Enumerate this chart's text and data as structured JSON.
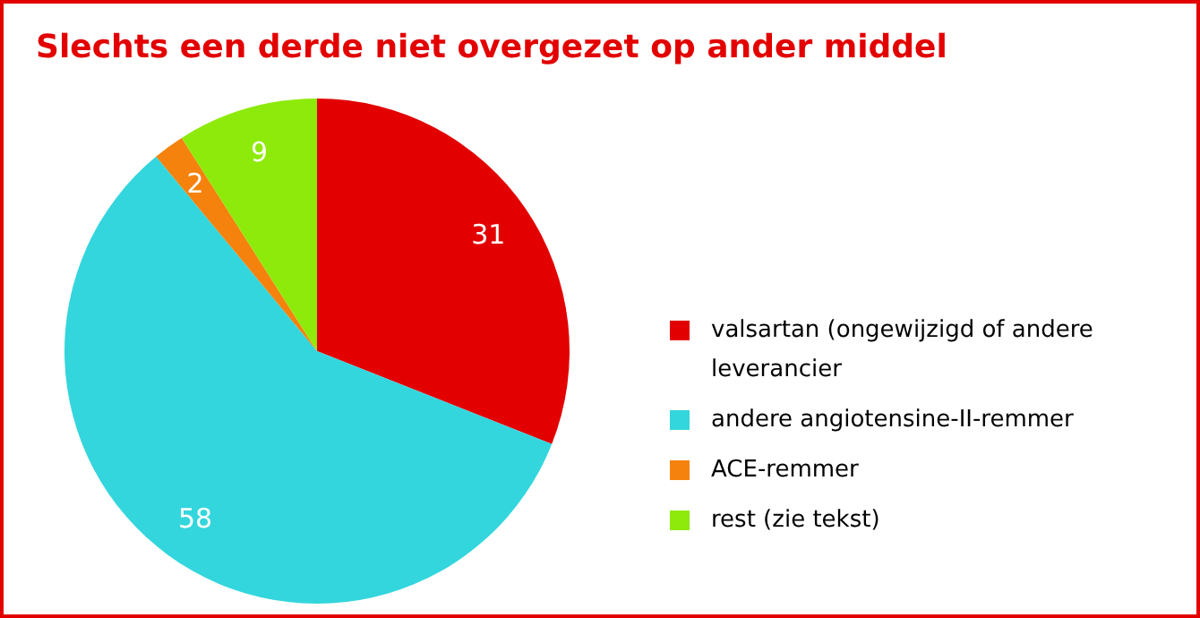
{
  "chart_data": {
    "type": "pie",
    "title": "Slechts een derde niet overgezet op ander middel",
    "categories": [
      "valsartan (ongewijzigd of andere leverancier",
      "andere angiotensine-II-remmer",
      "ACE-remmer",
      "rest (zie tekst)"
    ],
    "values": [
      31,
      58,
      2,
      9
    ],
    "colors": [
      "#e20000",
      "#33d6dc",
      "#f5820d",
      "#8eea0a"
    ],
    "data_labels": true,
    "legend": "right"
  }
}
